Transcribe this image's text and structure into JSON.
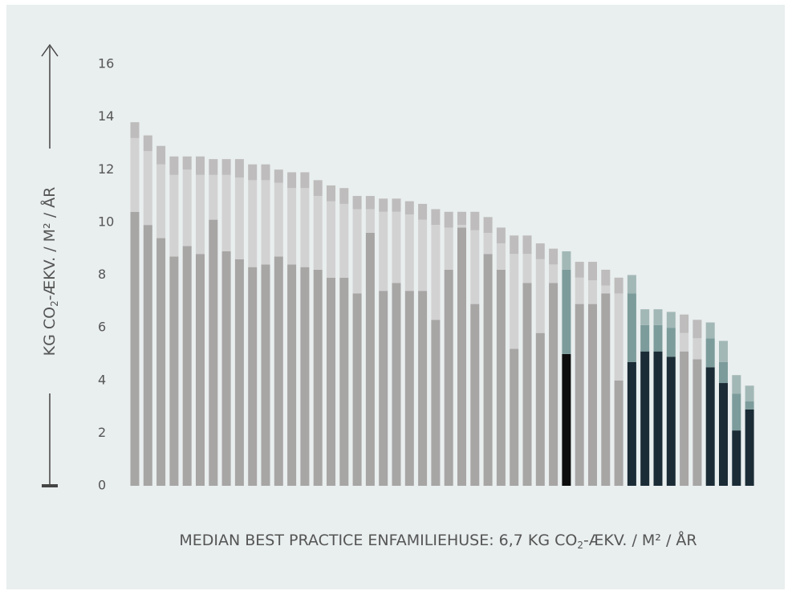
{
  "chart_data": {
    "type": "stacked_bar",
    "y_label": [
      "KG CO",
      "2",
      "-ÆKV. / M² / ÅR"
    ],
    "footer": [
      "MEDIAN BEST PRACTICE ENFAMILIEHUSE: 6,7 KG CO",
      "2",
      "-ÆKV. / M² / ÅR"
    ],
    "ylim": [
      0,
      16
    ],
    "yticks": [
      0,
      2,
      4,
      6,
      8,
      10,
      12,
      14,
      16
    ],
    "series": [
      {
        "values": [
          10.4,
          9.9,
          9.4,
          8.7,
          9.1,
          8.8,
          10.1,
          8.9,
          8.6,
          8.3,
          8.4,
          8.7,
          8.4,
          8.3,
          8.2,
          7.9,
          7.9,
          7.3,
          9.6,
          7.4,
          7.7,
          7.4,
          7.4,
          6.3,
          8.2,
          9.8,
          6.9,
          8.8,
          8.2,
          5.2,
          7.7,
          5.8,
          7.7,
          5.0,
          6.9,
          6.9,
          7.3,
          4.0,
          4.7,
          5.1,
          5.1,
          4.9,
          5.1,
          4.8,
          4.5,
          3.9,
          2.1,
          2.9
        ],
        "colors": [
          "#a8a5a5",
          "#a8a5a5",
          "#a8a5a5",
          "#a8a5a5",
          "#a8a5a5",
          "#a8a5a5",
          "#a8a5a5",
          "#a8a5a5",
          "#a8a5a5",
          "#a8a5a5",
          "#a8a5a5",
          "#a8a5a5",
          "#a8a5a5",
          "#a8a5a5",
          "#a8a5a5",
          "#a8a5a5",
          "#a8a5a5",
          "#a8a5a5",
          "#a8a5a5",
          "#a8a5a5",
          "#a8a5a5",
          "#a8a5a5",
          "#a8a5a5",
          "#a8a5a5",
          "#a8a5a5",
          "#a8a5a5",
          "#a8a5a5",
          "#a8a5a5",
          "#a8a5a5",
          "#a8a5a5",
          "#a8a5a5",
          "#a8a5a5",
          "#a8a5a5",
          "#0d0d0d",
          "#a8a5a5",
          "#a8a5a5",
          "#a8a5a5",
          "#a8a5a5",
          "#1b2c36",
          "#1b2c36",
          "#1b2c36",
          "#1b2c36",
          "#a8a5a5",
          "#a8a5a5",
          "#1b2c36",
          "#1b2c36",
          "#1b2c36",
          "#1b2c36"
        ]
      },
      {
        "values": [
          2.8,
          2.8,
          2.8,
          3.1,
          2.9,
          3.0,
          1.7,
          2.9,
          3.1,
          3.3,
          3.2,
          2.8,
          2.9,
          3.0,
          2.8,
          2.9,
          2.8,
          3.2,
          0.9,
          3.0,
          2.7,
          2.9,
          2.7,
          3.6,
          1.6,
          0.1,
          2.8,
          0.8,
          1.0,
          3.6,
          1.1,
          2.8,
          0.7,
          3.2,
          1.0,
          0.9,
          0.3,
          3.3,
          2.6,
          1.0,
          1.0,
          1.1,
          0.7,
          0.8,
          1.1,
          0.8,
          1.4,
          0.3
        ],
        "colors": [
          "#d3d2d2",
          "#d3d2d2",
          "#d3d2d2",
          "#d3d2d2",
          "#d3d2d2",
          "#d3d2d2",
          "#d3d2d2",
          "#d3d2d2",
          "#d3d2d2",
          "#d3d2d2",
          "#d3d2d2",
          "#d3d2d2",
          "#d3d2d2",
          "#d3d2d2",
          "#d3d2d2",
          "#d3d2d2",
          "#d3d2d2",
          "#d3d2d2",
          "#d3d2d2",
          "#d3d2d2",
          "#d3d2d2",
          "#d3d2d2",
          "#d3d2d2",
          "#d3d2d2",
          "#d3d2d2",
          "#d3d2d2",
          "#d3d2d2",
          "#d3d2d2",
          "#d3d2d2",
          "#d3d2d2",
          "#d3d2d2",
          "#d3d2d2",
          "#d3d2d2",
          "#7c9c9b",
          "#d3d2d2",
          "#d3d2d2",
          "#d3d2d2",
          "#d3d2d2",
          "#7c9c9b",
          "#7c9c9b",
          "#7c9c9b",
          "#7c9c9b",
          "#d3d2d2",
          "#d3d2d2",
          "#7c9c9b",
          "#7c9c9b",
          "#7c9c9b",
          "#7c9c9b"
        ]
      },
      {
        "values": [
          0.6,
          0.6,
          0.7,
          0.7,
          0.5,
          0.7,
          0.6,
          0.6,
          0.7,
          0.6,
          0.6,
          0.5,
          0.6,
          0.6,
          0.6,
          0.6,
          0.6,
          0.5,
          0.5,
          0.5,
          0.5,
          0.5,
          0.6,
          0.6,
          0.6,
          0.5,
          0.7,
          0.6,
          0.6,
          0.7,
          0.7,
          0.6,
          0.6,
          0.7,
          0.6,
          0.7,
          0.6,
          0.6,
          0.7,
          0.6,
          0.6,
          0.6,
          0.7,
          0.7,
          0.6,
          0.8,
          0.7,
          0.6
        ],
        "colors": [
          "#bebcbc",
          "#bebcbc",
          "#bebcbc",
          "#bebcbc",
          "#bebcbc",
          "#bebcbc",
          "#bebcbc",
          "#bebcbc",
          "#bebcbc",
          "#bebcbc",
          "#bebcbc",
          "#bebcbc",
          "#bebcbc",
          "#bebcbc",
          "#bebcbc",
          "#bebcbc",
          "#bebcbc",
          "#bebcbc",
          "#bebcbc",
          "#bebcbc",
          "#bebcbc",
          "#bebcbc",
          "#bebcbc",
          "#bebcbc",
          "#bebcbc",
          "#bebcbc",
          "#bebcbc",
          "#bebcbc",
          "#bebcbc",
          "#bebcbc",
          "#bebcbc",
          "#bebcbc",
          "#bebcbc",
          "#a2b8b6",
          "#bebcbc",
          "#bebcbc",
          "#bebcbc",
          "#bebcbc",
          "#a2b8b6",
          "#a2b8b6",
          "#a2b8b6",
          "#a2b8b6",
          "#bebcbc",
          "#bebcbc",
          "#a2b8b6",
          "#a2b8b6",
          "#a2b8b6",
          "#a2b8b6"
        ]
      }
    ]
  }
}
